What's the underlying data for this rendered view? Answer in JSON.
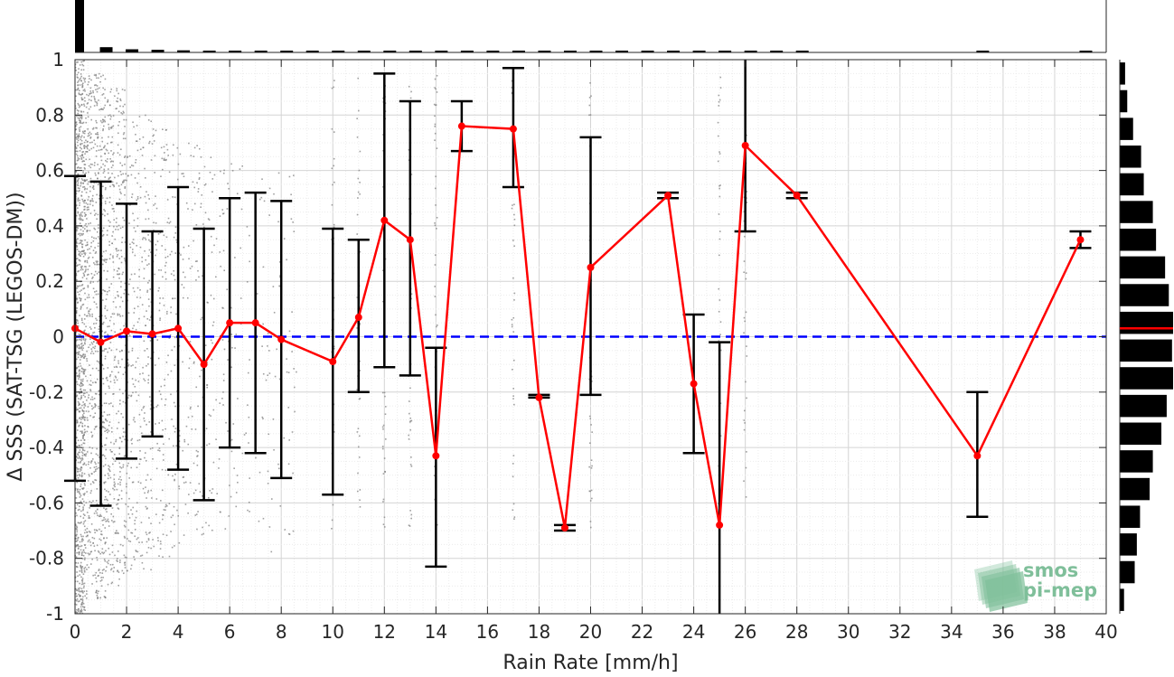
{
  "chart_data": {
    "type": "line",
    "title": "",
    "xlabel": "Rain Rate [mm/h]",
    "ylabel": "Δ SSS (SAT-TSG (LEGOS-DM))",
    "xlim": [
      0,
      40
    ],
    "ylim": [
      -1,
      1
    ],
    "xticks": [
      0,
      2,
      4,
      6,
      8,
      10,
      12,
      14,
      16,
      18,
      20,
      22,
      24,
      26,
      28,
      30,
      32,
      34,
      36,
      38,
      40
    ],
    "yticks": [
      -1,
      -0.8,
      -0.6,
      -0.4,
      -0.2,
      0,
      0.2,
      0.4,
      0.6,
      0.8,
      1
    ],
    "grid": true,
    "reference_line": {
      "y": 0,
      "color": "#0000ff",
      "style": "dashed"
    },
    "series": [
      {
        "color": "#ff0000",
        "x": [
          0,
          1,
          2,
          3,
          4,
          5,
          6,
          7,
          8,
          10,
          11,
          12,
          13,
          14,
          15,
          17,
          18,
          19,
          20,
          23,
          24,
          25,
          26,
          28,
          35,
          39
        ],
        "y": [
          0.03,
          -0.02,
          0.02,
          0.01,
          0.03,
          -0.1,
          0.05,
          0.05,
          -0.01,
          -0.09,
          0.07,
          0.42,
          0.35,
          -0.43,
          0.76,
          0.75,
          -0.22,
          -0.69,
          0.25,
          0.51,
          -0.17,
          -0.68,
          0.69,
          0.51,
          -0.43,
          0.35
        ],
        "error_low": [
          -0.52,
          -0.61,
          -0.44,
          -0.36,
          -0.48,
          -0.59,
          -0.4,
          -0.42,
          -0.51,
          -0.57,
          -0.2,
          -0.11,
          -0.14,
          -0.83,
          0.67,
          0.54,
          -0.22,
          -0.7,
          -0.21,
          0.5,
          -0.42,
          -1.0,
          0.38,
          0.5,
          -0.65,
          0.32
        ],
        "error_high": [
          0.58,
          0.56,
          0.48,
          0.38,
          0.54,
          0.39,
          0.5,
          0.52,
          0.49,
          0.39,
          0.35,
          0.95,
          0.85,
          -0.04,
          0.85,
          0.97,
          -0.21,
          -0.68,
          0.72,
          0.52,
          0.08,
          -0.02,
          1.0,
          0.52,
          -0.2,
          0.38
        ]
      }
    ],
    "marginal_x_histogram": {
      "bins": [
        0,
        1,
        2,
        3,
        4,
        5,
        6,
        7,
        8,
        9,
        10,
        11,
        12,
        13,
        14,
        15,
        16,
        17,
        18,
        19,
        20,
        21,
        22,
        23,
        24,
        25,
        26,
        27,
        28,
        35,
        39
      ],
      "relative_height": [
        1.0,
        0.1,
        0.06,
        0.05,
        0.04,
        0.03,
        0.03,
        0.03,
        0.02,
        0.02,
        0.02,
        0.02,
        0.02,
        0.02,
        0.02,
        0.02,
        0.02,
        0.02,
        0.02,
        0.02,
        0.02,
        0.02,
        0.02,
        0.02,
        0.02,
        0.02,
        0.02,
        0.02,
        0.02,
        0.02,
        0.02
      ]
    },
    "marginal_y_histogram": {
      "bins": [
        0.95,
        0.85,
        0.75,
        0.65,
        0.55,
        0.45,
        0.35,
        0.25,
        0.15,
        0.05,
        -0.05,
        -0.15,
        -0.25,
        -0.35,
        -0.45,
        -0.55,
        -0.65,
        -0.75,
        -0.85,
        -0.95
      ],
      "relative_width": [
        0.1,
        0.14,
        0.25,
        0.4,
        0.45,
        0.62,
        0.68,
        0.85,
        0.92,
        1.0,
        0.98,
        1.0,
        0.88,
        0.78,
        0.62,
        0.56,
        0.38,
        0.32,
        0.28,
        0.08
      ],
      "marker_y": 0.03,
      "marker_color": "#ff0000"
    },
    "scatter_color": "#808080"
  },
  "watermark": {
    "line1": "smos",
    "line2": "pi-mep",
    "color": "#7fbf9a"
  }
}
